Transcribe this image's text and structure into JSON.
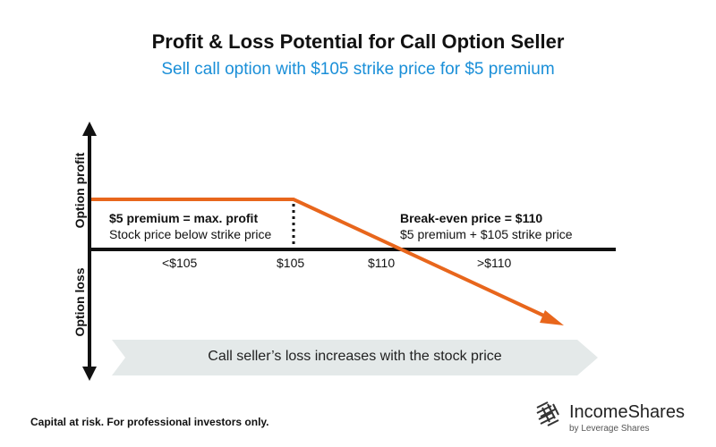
{
  "title": "Profit & Loss Potential for Call Option Seller",
  "subtitle": "Sell call option with $105 strike price for $5 premium",
  "axes": {
    "y_top": "Option profit",
    "y_bottom": "Option loss"
  },
  "x_ticks": [
    "<$105",
    "$105",
    "$110",
    ">$110"
  ],
  "annotations": {
    "left_bold": "$5 premium = max. profit",
    "left_text": "Stock price below strike price",
    "right_bold": "Break-even price = $110",
    "right_text": "$5 premium + $105 strike price"
  },
  "banner": "Call seller’s loss increases with the stock price",
  "footer": "Capital at risk. For professional investors only.",
  "logo": {
    "name": "IncomeShares",
    "sub": "by Leverage Shares"
  },
  "colors": {
    "payoff": "#e8661c",
    "subtitle": "#1a8fd8",
    "banner": "#e4e9e9"
  },
  "chart_data": {
    "type": "line",
    "strike": 105,
    "premium": 5,
    "breakeven": 110
  }
}
